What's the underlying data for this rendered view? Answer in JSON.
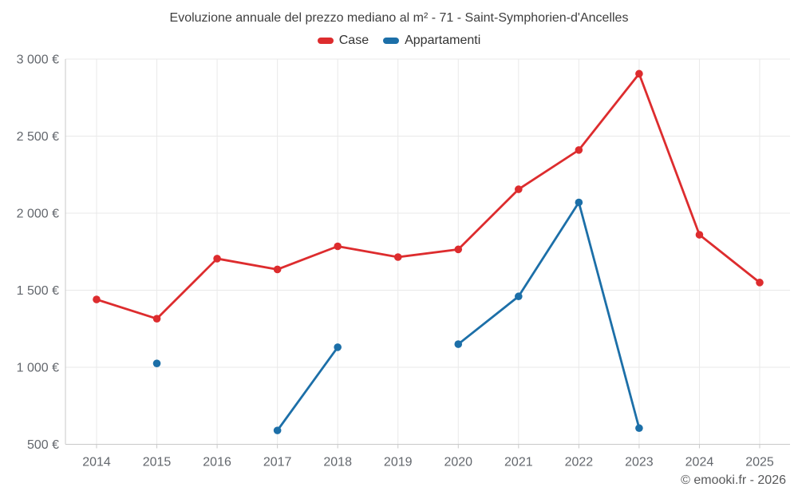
{
  "title": "Evoluzione annuale del prezzo mediano al m² - 71 - Saint-Symphorien-d'Ancelles",
  "legend": [
    {
      "label": "Case",
      "color": "#dd2c2e"
    },
    {
      "label": "Appartamenti",
      "color": "#1c6fa8"
    }
  ],
  "copyright": "© emooki.fr - 2026",
  "colors": {
    "case_red": "#dd2c2e",
    "apartments_blue": "#1c6fa8",
    "gridline": "#e9e9e9",
    "axis_line": "#c9c9c9",
    "tick_label": "#63676d"
  },
  "chart_data": {
    "type": "line",
    "x": [
      2014,
      2015,
      2016,
      2017,
      2018,
      2019,
      2020,
      2021,
      2022,
      2023,
      2024,
      2025
    ],
    "series": [
      {
        "name": "Case",
        "color": "#dd2c2e",
        "values": [
          1440,
          1315,
          1705,
          1635,
          1785,
          1715,
          1765,
          2155,
          2410,
          2905,
          1860,
          1550
        ]
      },
      {
        "name": "Appartamenti",
        "color": "#1c6fa8",
        "values": [
          null,
          1025,
          null,
          590,
          1130,
          null,
          1150,
          1460,
          2070,
          605,
          null,
          null
        ]
      }
    ],
    "title": "Evoluzione annuale del prezzo mediano al m² - 71 - Saint-Symphorien-d'Ancelles",
    "xlabel": "",
    "ylabel": "",
    "ylim": [
      500,
      3000
    ],
    "ytick_step": 500,
    "ytick_suffix": " €",
    "grid": true,
    "legend_position": "top"
  }
}
